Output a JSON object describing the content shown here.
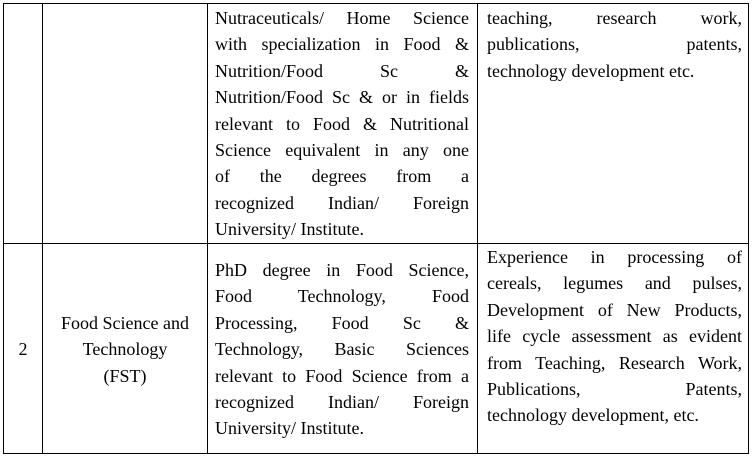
{
  "rows": [
    {
      "number": "",
      "discipline": [],
      "qualification": [
        "Nutraceuticals/ Home Science",
        "with specialization in Food &",
        "Nutrition/Food Sc &",
        "Nutrition/Food Sc & or in fields",
        "relevant to Food & Nutritional",
        "Science equivalent in any one",
        "of the degrees from a",
        "recognized Indian/ Foreign",
        "University/ Institute."
      ],
      "experience": [
        "teaching, research work,",
        "publications, patents,",
        "technology development etc."
      ]
    },
    {
      "number": "2",
      "discipline": [
        "Food Science and",
        "Technology",
        "(FST)"
      ],
      "qualification": [
        "PhD degree in Food Science,",
        "Food Technology, Food",
        "Processing, Food Sc &",
        "Technology, Basic Sciences",
        "relevant to Food Science from a",
        "recognized Indian/ Foreign",
        "University/ Institute."
      ],
      "experience": [
        "Experience in processing of",
        "cereals, legumes and pulses,",
        "Development of New Products,",
        "life cycle assessment as evident",
        "from Teaching, Research Work,",
        "Publications, Patents,",
        "technology development, etc."
      ]
    }
  ]
}
